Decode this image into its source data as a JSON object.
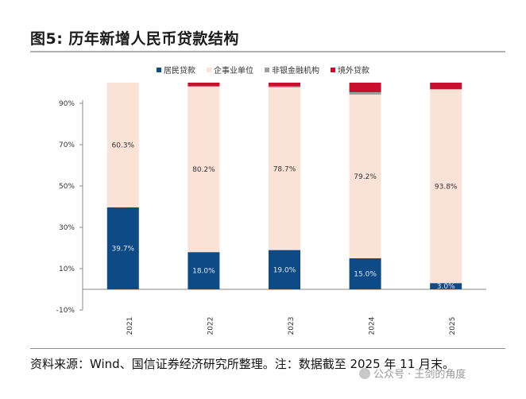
{
  "title": "图5: 历年新增人民币贷款结构",
  "source": "资料来源：Wind、国信证券经济研究所整理。注：数据截至 2025 年 11 月末。",
  "watermark": "公众号 · 王剑的角度",
  "colors": {
    "household": "#0d4a86",
    "enterprise": "#fbe2d6",
    "nonbank": "#9e9e9e",
    "overseas": "#c8102e"
  },
  "chart_data": {
    "type": "bar",
    "stacked": true,
    "categories": [
      "2021",
      "2022",
      "2023",
      "2024",
      "2025"
    ],
    "ylim": [
      -10,
      100
    ],
    "yticks": [
      -10,
      10,
      30,
      50,
      70,
      90
    ],
    "ytick_labels": [
      "-10%",
      "10%",
      "30%",
      "50%",
      "70%",
      "90%"
    ],
    "legend_position": "top",
    "series": [
      {
        "name": "居民贷款",
        "color_key": "household",
        "values": [
          39.7,
          18.0,
          19.0,
          15.0,
          3.0
        ],
        "labels": [
          "39.7%",
          "18.0%",
          "19.0%",
          "15.0%",
          "3.0%"
        ]
      },
      {
        "name": "企事业单位",
        "color_key": "enterprise",
        "values": [
          60.3,
          80.2,
          78.7,
          79.2,
          93.8
        ],
        "labels": [
          "60.3%",
          "80.2%",
          "78.7%",
          "79.2%",
          "93.8%"
        ]
      },
      {
        "name": "非银金融机构",
        "color_key": "nonbank",
        "values": [
          0.0,
          0.0,
          0.5,
          1.2,
          0.0
        ],
        "labels": [
          "",
          "",
          "",
          "",
          ""
        ]
      },
      {
        "name": "境外贷款",
        "color_key": "overseas",
        "values": [
          0.0,
          1.8,
          1.8,
          4.6,
          3.2
        ],
        "labels": [
          "",
          "",
          "",
          "",
          ""
        ]
      }
    ]
  }
}
